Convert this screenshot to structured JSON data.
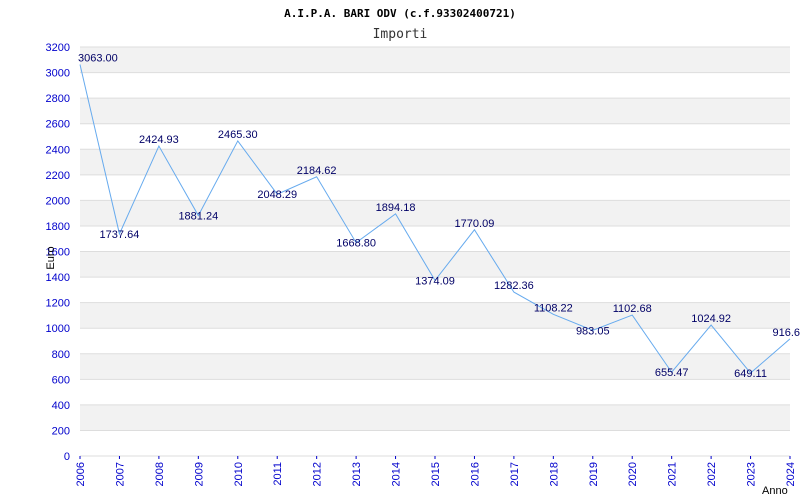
{
  "chart_data": {
    "type": "line",
    "title": "A.I.P.A. BARI ODV (c.f.93302400721)",
    "subtitle": "Importi",
    "xlabel": "Anno",
    "ylabel": "Euro",
    "ylim": [
      0,
      3200
    ],
    "yticks": [
      "0",
      "200",
      "400",
      "600",
      "800",
      "1000",
      "1200",
      "1400",
      "1600",
      "1800",
      "2000",
      "2200",
      "2400",
      "2600",
      "2800",
      "3000",
      "3200"
    ],
    "x": [
      "2006",
      "2007",
      "2008",
      "2009",
      "2010",
      "2011",
      "2012",
      "2013",
      "2014",
      "2015",
      "2016",
      "2017",
      "2018",
      "2019",
      "2020",
      "2021",
      "2022",
      "2023",
      "2024"
    ],
    "values": [
      3063.0,
      1737.64,
      2424.93,
      1881.24,
      2465.3,
      2048.29,
      2184.62,
      1668.8,
      1894.18,
      1374.09,
      1770.09,
      1282.36,
      1108.22,
      983.05,
      1102.68,
      655.47,
      1024.92,
      649.11,
      916.6
    ],
    "labels": [
      "3063.00",
      "1737.64",
      "2424.93",
      "1881.24",
      "2465.30",
      "2048.29",
      "2184.62",
      "1668.80",
      "1894.18",
      "1374.09",
      "1770.09",
      "1282.36",
      "1108.22",
      "983.05",
      "1102.68",
      "655.47",
      "1024.92",
      "649.11",
      "916.6"
    ],
    "grid": true,
    "line_color": "#66aaee",
    "band_color": "#f2f2f2",
    "tick_color": "#0000cc"
  }
}
